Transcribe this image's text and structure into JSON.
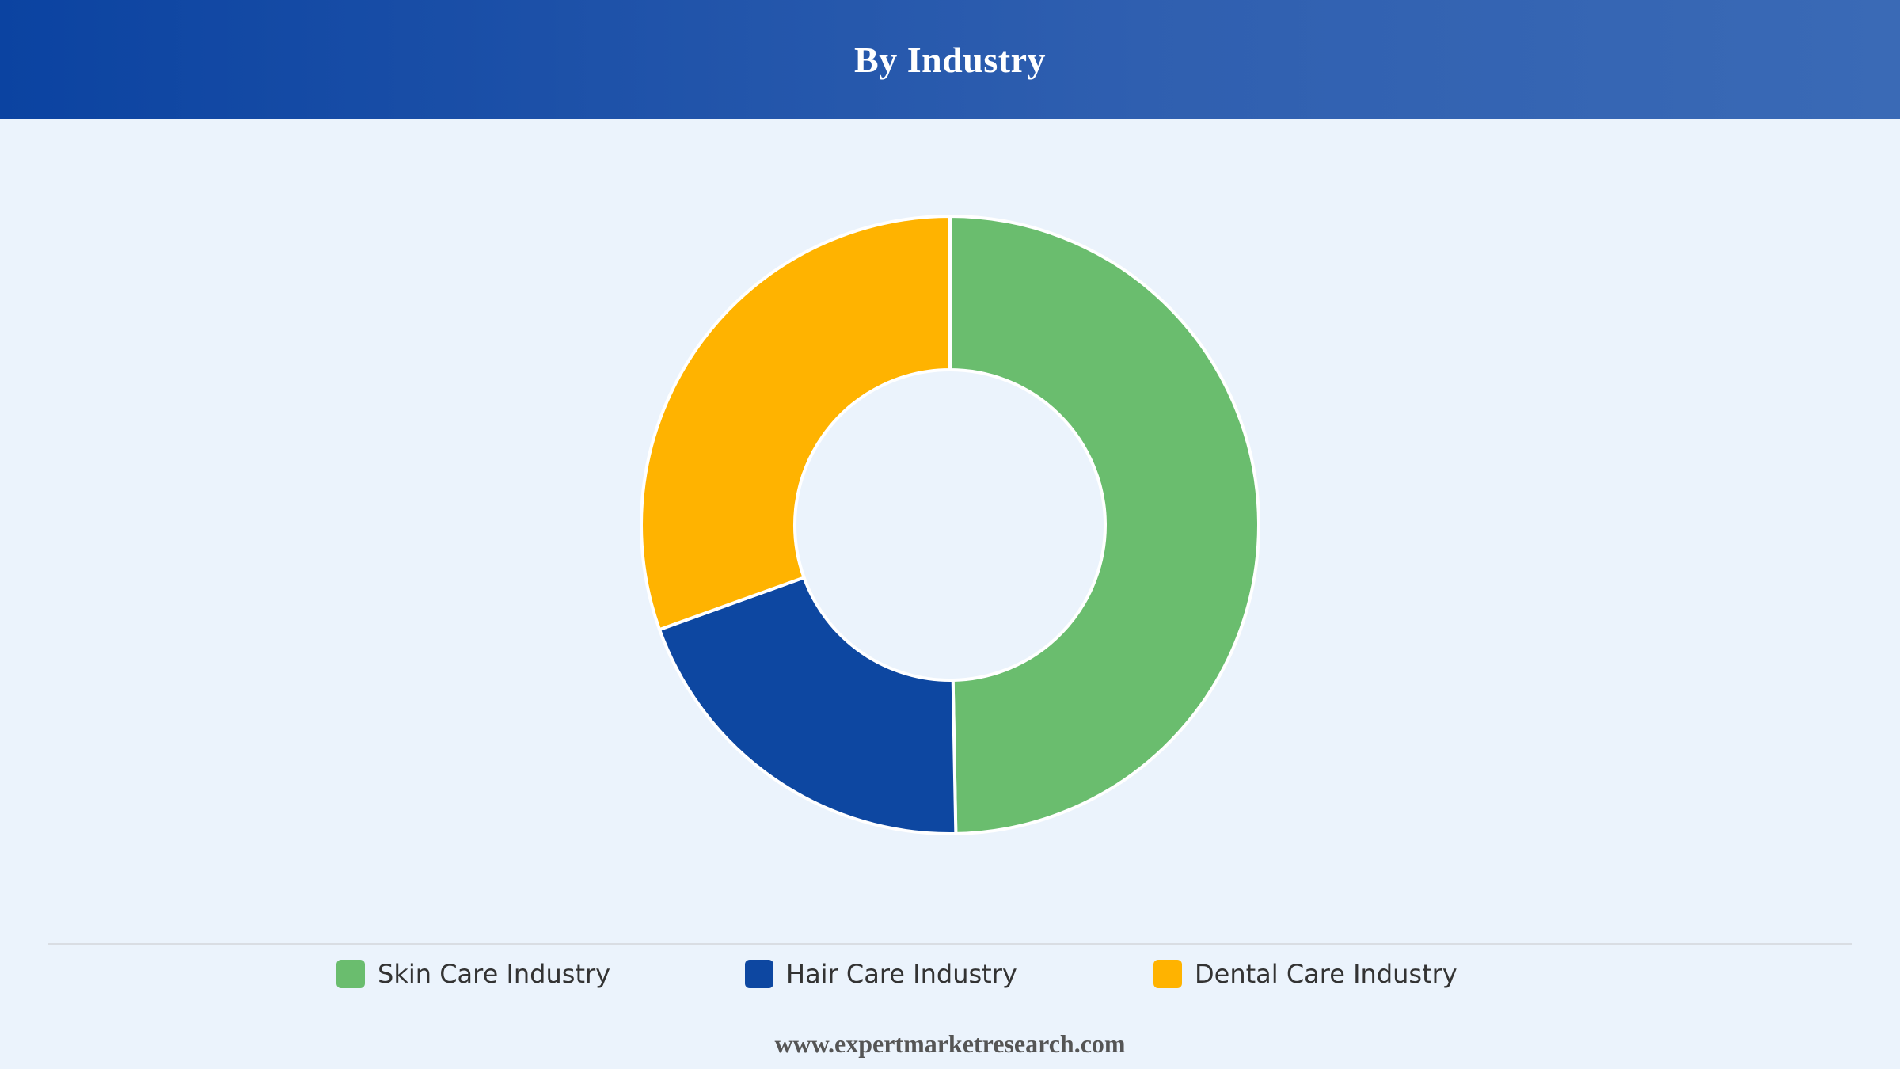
{
  "header": {
    "title": "By Industry"
  },
  "chart_data": {
    "type": "pie",
    "variant": "donut",
    "title": "By Industry",
    "categories": [
      "Skin Care Industry",
      "Hair Care Industry",
      "Dental Care Industry"
    ],
    "values": [
      49.7,
      19.8,
      30.5
    ],
    "unit": "%",
    "colors": [
      "#6abd6e",
      "#0d47a1",
      "#ffb300"
    ],
    "legend_position": "bottom",
    "start_angle": "top, clockwise"
  },
  "legend": {
    "items": [
      {
        "label": "Skin Care Industry",
        "color": "#6abd6e"
      },
      {
        "label": "Hair Care Industry",
        "color": "#0d47a1"
      },
      {
        "label": "Dental Care Industry",
        "color": "#ffb300"
      }
    ]
  },
  "footer": {
    "source": "www.expertmarketresearch.com"
  }
}
